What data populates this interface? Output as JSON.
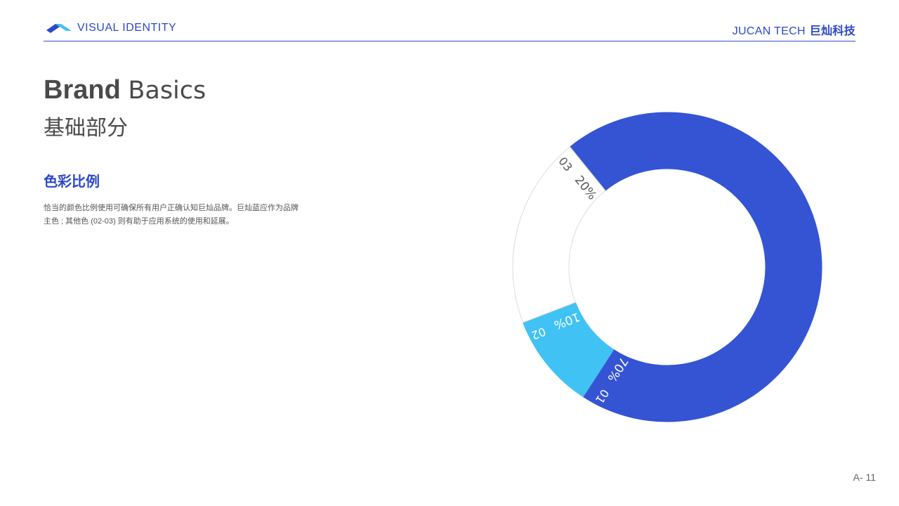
{
  "header": {
    "left_label": "VISUAL IDENTITY",
    "brand_en": "JUCAN TECH",
    "brand_cn": "巨灿科技"
  },
  "title": {
    "bold": "Brand",
    "light": "Basics",
    "cn": "基础部分"
  },
  "section": {
    "heading": "色彩比例",
    "description_line1": "恰当的颜色比例使用可确保所有用户正确认知巨灿品牌。巨灿蓝应作为品牌",
    "description_line2": "主色 ; 其他色 (02-03) 则有助于应用系统的使用和延展。"
  },
  "page_number": "A- 11",
  "colors": {
    "accent": "#2d48c9",
    "primary_blue": "#3554d4",
    "sky_blue": "#41c2f4",
    "white": "#ffffff",
    "outline": "#dddddd",
    "text": "#4a4a4a"
  },
  "chart_data": {
    "type": "pie",
    "variant": "donut",
    "categories": [
      "01",
      "02",
      "03"
    ],
    "values": [
      70,
      10,
      20
    ],
    "value_labels": [
      "70%",
      "10%",
      "20%"
    ],
    "colors": [
      "#3554d4",
      "#41c2f4",
      "#ffffff"
    ]
  }
}
